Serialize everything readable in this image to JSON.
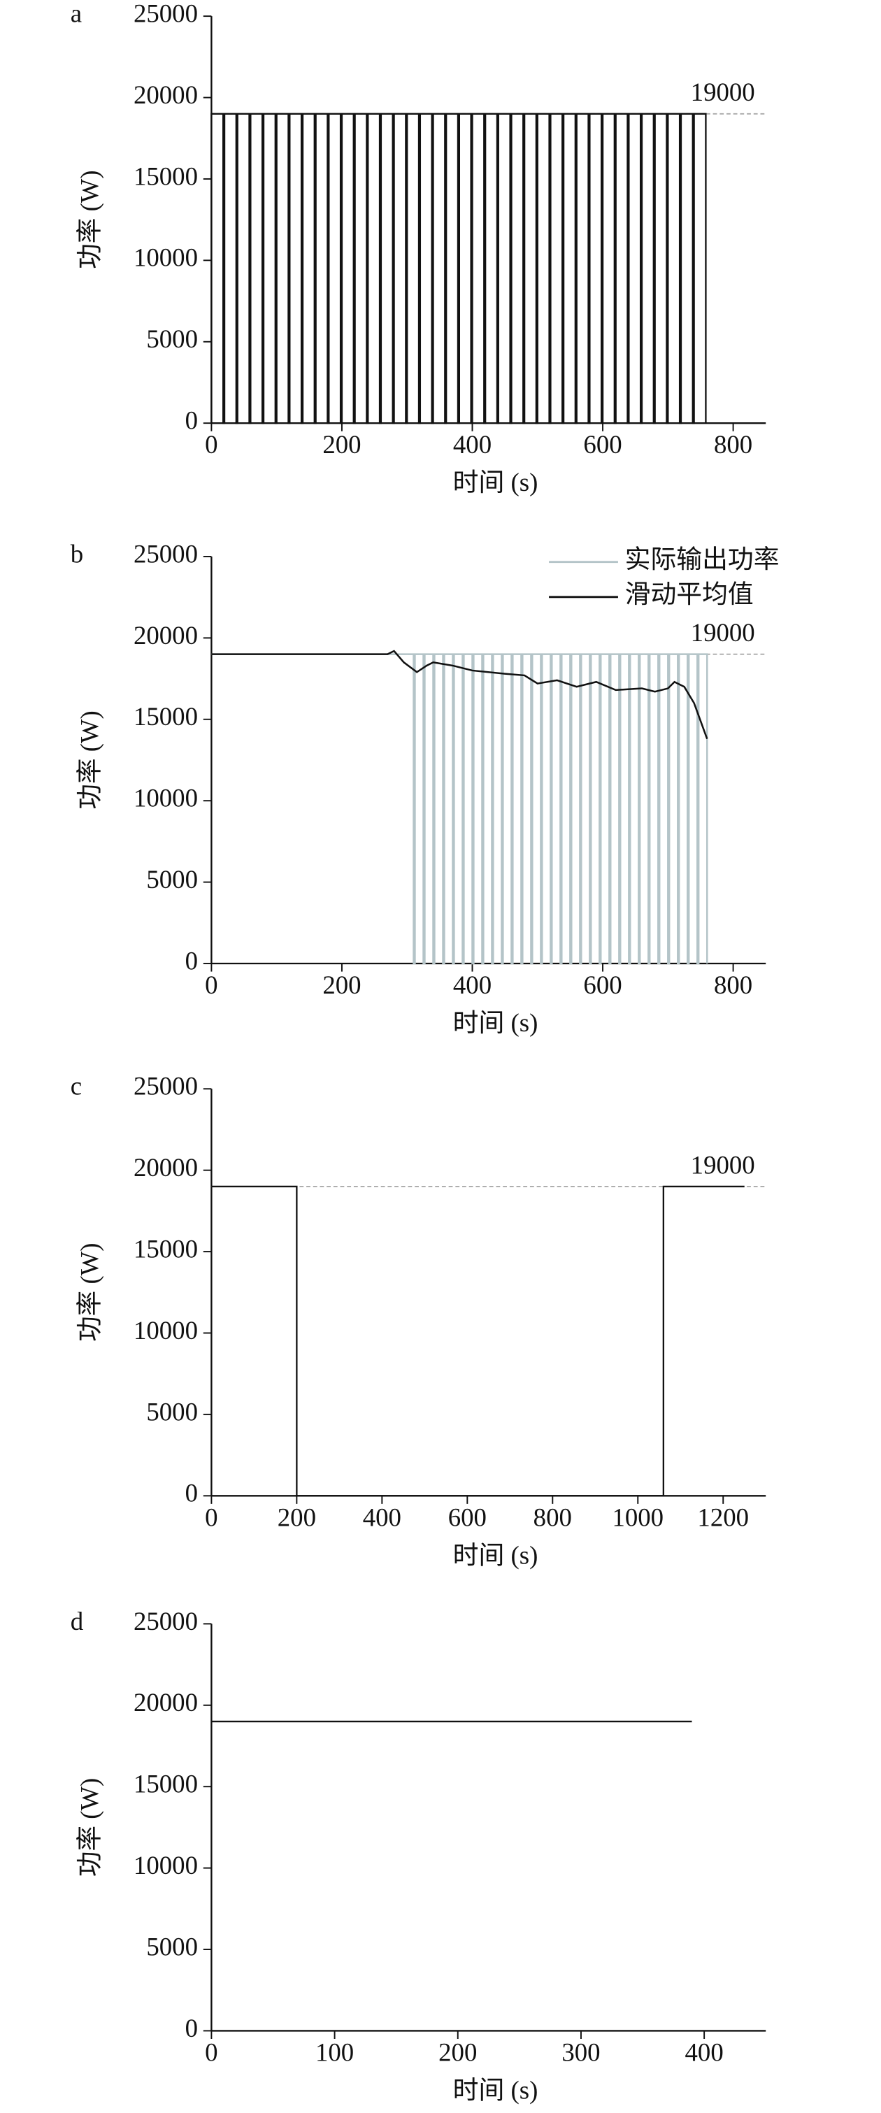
{
  "chart_data": [
    {
      "type": "line",
      "panel_label": "a",
      "xlabel": "时间 (s)",
      "ylabel": "功率 (W)",
      "xlim": [
        0,
        850
      ],
      "xticks": [
        0,
        200,
        400,
        600,
        800
      ],
      "ylim": [
        0,
        25000
      ],
      "yticks": [
        0,
        5000,
        10000,
        15000,
        20000,
        25000
      ],
      "reference": {
        "value": 19000,
        "label": "19000",
        "color": "#aaaaaa"
      },
      "color": "#111111",
      "x": [
        0,
        0,
        18,
        18,
        20,
        20,
        38,
        38,
        40,
        40,
        58,
        58,
        60,
        60,
        78,
        78,
        80,
        80,
        98,
        98,
        100,
        100,
        118,
        118,
        120,
        120,
        138,
        138,
        140,
        140,
        158,
        158,
        160,
        160,
        178,
        178,
        180,
        180,
        198,
        198,
        200,
        200,
        218,
        218,
        220,
        220,
        238,
        238,
        240,
        240,
        258,
        258,
        260,
        260,
        278,
        278,
        280,
        280,
        298,
        298,
        300,
        300,
        318,
        318,
        320,
        320,
        338,
        338,
        340,
        340,
        358,
        358,
        360,
        360,
        378,
        378,
        380,
        380,
        398,
        398,
        400,
        400,
        418,
        418,
        420,
        420,
        438,
        438,
        440,
        440,
        458,
        458,
        460,
        460,
        478,
        478,
        480,
        480,
        498,
        498,
        500,
        500,
        518,
        518,
        520,
        520,
        538,
        538,
        540,
        540,
        558,
        558,
        560,
        560,
        578,
        578,
        580,
        580,
        598,
        598,
        600,
        600,
        618,
        618,
        620,
        620,
        638,
        638,
        640,
        640,
        658,
        658,
        660,
        660,
        678,
        678,
        680,
        680,
        698,
        698,
        700,
        700,
        718,
        718,
        720,
        720,
        738,
        738,
        740,
        740,
        758,
        758
      ],
      "values": [
        0,
        19000,
        19000,
        0,
        0,
        19000,
        19000,
        0,
        0,
        19000,
        19000,
        0,
        0,
        19000,
        19000,
        0,
        0,
        19000,
        19000,
        0,
        0,
        19000,
        19000,
        0,
        0,
        19000,
        19000,
        0,
        0,
        19000,
        19000,
        0,
        0,
        19000,
        19000,
        0,
        0,
        19000,
        19000,
        0,
        0,
        19000,
        19000,
        0,
        0,
        19000,
        19000,
        0,
        0,
        19000,
        19000,
        0,
        0,
        19000,
        19000,
        0,
        0,
        19000,
        19000,
        0,
        0,
        19000,
        19000,
        0,
        0,
        19000,
        19000,
        0,
        0,
        19000,
        19000,
        0,
        0,
        19000,
        19000,
        0,
        0,
        19000,
        19000,
        0,
        0,
        19000,
        19000,
        0,
        0,
        19000,
        19000,
        0,
        0,
        19000,
        19000,
        0,
        0,
        19000,
        19000,
        0,
        0,
        19000,
        19000,
        0,
        0,
        19000,
        19000,
        0,
        0,
        19000,
        19000,
        0,
        0,
        19000,
        19000,
        0,
        0,
        19000,
        19000,
        0,
        0,
        19000,
        19000,
        0,
        0,
        19000,
        19000,
        0,
        0,
        19000,
        19000,
        0,
        0,
        19000,
        19000,
        0,
        0,
        19000,
        19000,
        0,
        0,
        19000,
        19000,
        0,
        0,
        19000,
        19000,
        0,
        0,
        19000,
        19000,
        0,
        0,
        19000,
        19000,
        0
      ]
    },
    {
      "type": "line",
      "panel_label": "b",
      "xlabel": "时间 (s)",
      "ylabel": "功率 (W)",
      "xlim": [
        0,
        850
      ],
      "xticks": [
        0,
        200,
        400,
        600,
        800
      ],
      "ylim": [
        0,
        25000
      ],
      "yticks": [
        0,
        5000,
        10000,
        15000,
        20000,
        25000
      ],
      "reference": {
        "value": 19000,
        "label": "19000",
        "color": "#aaaaaa"
      },
      "series": [
        {
          "name": "实际输出功率",
          "color": "#b4c4c8",
          "x": [
            0,
            310,
            310,
            312,
            312,
            325,
            325,
            327,
            327,
            340,
            340,
            342,
            342,
            355,
            355,
            357,
            357,
            370,
            370,
            372,
            372,
            385,
            385,
            387,
            387,
            400,
            400,
            402,
            402,
            415,
            415,
            417,
            417,
            430,
            430,
            432,
            432,
            445,
            445,
            447,
            447,
            460,
            460,
            462,
            462,
            475,
            475,
            477,
            477,
            490,
            490,
            492,
            492,
            505,
            505,
            507,
            507,
            520,
            520,
            522,
            522,
            535,
            535,
            537,
            537,
            550,
            550,
            552,
            552,
            565,
            565,
            567,
            567,
            580,
            580,
            582,
            582,
            595,
            595,
            597,
            597,
            610,
            610,
            612,
            612,
            625,
            625,
            627,
            627,
            640,
            640,
            642,
            642,
            655,
            655,
            657,
            657,
            670,
            670,
            672,
            672,
            685,
            685,
            687,
            687,
            700,
            700,
            702,
            702,
            715,
            715,
            717,
            717,
            730,
            730,
            732,
            732,
            745,
            745,
            747,
            747,
            760,
            760
          ],
          "values": [
            19000,
            19000,
            0,
            0,
            19000,
            19000,
            0,
            0,
            19000,
            19000,
            0,
            0,
            19000,
            19000,
            0,
            0,
            19000,
            19000,
            0,
            0,
            19000,
            19000,
            0,
            0,
            19000,
            19000,
            0,
            0,
            19000,
            19000,
            0,
            0,
            19000,
            19000,
            0,
            0,
            19000,
            19000,
            0,
            0,
            19000,
            19000,
            0,
            0,
            19000,
            19000,
            0,
            0,
            19000,
            19000,
            0,
            0,
            19000,
            19000,
            0,
            0,
            19000,
            19000,
            0,
            0,
            19000,
            19000,
            0,
            0,
            19000,
            19000,
            0,
            0,
            19000,
            19000,
            0,
            0,
            19000,
            19000,
            0,
            0,
            19000,
            19000,
            0,
            0,
            19000,
            19000,
            0,
            0,
            19000,
            19000,
            0,
            0,
            19000,
            19000,
            0,
            0,
            19000,
            19000,
            0,
            0,
            19000,
            19000,
            0,
            0,
            19000,
            19000,
            0,
            0,
            19000,
            19000,
            0,
            0,
            19000,
            19000,
            0,
            0,
            19000,
            19000,
            0,
            0,
            19000,
            19000,
            0,
            0,
            19000,
            19000,
            0
          ]
        },
        {
          "name": "滑动平均值",
          "color": "#111111",
          "x": [
            0,
            270,
            280,
            295,
            315,
            330,
            340,
            370,
            400,
            450,
            480,
            500,
            530,
            560,
            590,
            620,
            660,
            680,
            700,
            710,
            725,
            740,
            760
          ],
          "values": [
            19000,
            19000,
            19200,
            18500,
            17900,
            18300,
            18500,
            18300,
            18000,
            17800,
            17700,
            17200,
            17400,
            17000,
            17300,
            16800,
            16900,
            16700,
            16900,
            17300,
            17000,
            16000,
            13800
          ]
        }
      ]
    },
    {
      "type": "line",
      "panel_label": "c",
      "xlabel": "时间 (s)",
      "ylabel": "功率 (W)",
      "xlim": [
        0,
        1300
      ],
      "xticks": [
        0,
        200,
        400,
        600,
        800,
        1000,
        1200
      ],
      "ylim": [
        0,
        25000
      ],
      "yticks": [
        0,
        5000,
        10000,
        15000,
        20000,
        25000
      ],
      "reference": {
        "value": 19000,
        "label": "19000",
        "color": "#aaaaaa"
      },
      "color": "#111111",
      "x": [
        0,
        200,
        200,
        1060,
        1060,
        1250
      ],
      "values": [
        19000,
        19000,
        0,
        0,
        19000,
        19000
      ]
    },
    {
      "type": "line",
      "panel_label": "d",
      "xlabel": "时间 (s)",
      "ylabel": "功率 (W)",
      "xlim": [
        0,
        450
      ],
      "xticks": [
        0,
        100,
        200,
        300,
        400
      ],
      "ylim": [
        0,
        25000
      ],
      "yticks": [
        0,
        5000,
        10000,
        15000,
        20000,
        25000
      ],
      "color": "#111111",
      "x": [
        0,
        390
      ],
      "values": [
        19000,
        19000
      ]
    }
  ]
}
